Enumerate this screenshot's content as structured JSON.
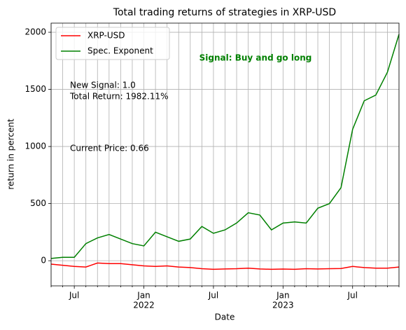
{
  "chart_data": {
    "type": "line",
    "title": "Total trading returns of strategies in XRP-USD",
    "x_label": "Date",
    "y_label": "return in percent",
    "x": [
      "2021-05",
      "2021-06",
      "2021-07",
      "2021-08",
      "2021-09",
      "2021-10",
      "2021-11",
      "2021-12",
      "2022-01",
      "2022-02",
      "2022-03",
      "2022-04",
      "2022-05",
      "2022-06",
      "2022-07",
      "2022-08",
      "2022-09",
      "2022-10",
      "2022-11",
      "2022-12",
      "2023-01",
      "2023-02",
      "2023-03",
      "2023-04",
      "2023-05",
      "2023-06",
      "2023-07",
      "2023-08",
      "2023-09",
      "2023-10",
      "2023-11"
    ],
    "series": [
      {
        "name": "XRP-USD",
        "color": "#ff0000",
        "values": [
          -30,
          -40,
          -50,
          -55,
          -20,
          -25,
          -25,
          -35,
          -45,
          -50,
          -45,
          -55,
          -60,
          -70,
          -75,
          -72,
          -70,
          -65,
          -72,
          -75,
          -73,
          -75,
          -70,
          -72,
          -70,
          -68,
          -50,
          -60,
          -65,
          -65,
          -55
        ]
      },
      {
        "name": "Spec. Exponent",
        "color": "#008000",
        "values": [
          20,
          30,
          30,
          150,
          200,
          230,
          190,
          150,
          130,
          250,
          210,
          170,
          190,
          300,
          240,
          270,
          330,
          420,
          400,
          270,
          330,
          340,
          330,
          460,
          500,
          640,
          1150,
          1400,
          1450,
          1650,
          1982
        ]
      }
    ],
    "xlim": [
      "2021-05",
      "2023-11"
    ],
    "xticks": [
      {
        "value": "2021-07",
        "label": "Jul"
      },
      {
        "value": "2022-01",
        "label": "Jan",
        "year": "2022"
      },
      {
        "value": "2022-07",
        "label": "Jul"
      },
      {
        "value": "2023-01",
        "label": "Jan",
        "year": "2023"
      },
      {
        "value": "2023-07",
        "label": "Jul"
      }
    ],
    "xminorticks": [
      "2021-05",
      "2021-06",
      "2021-08",
      "2021-09",
      "2021-10",
      "2021-11",
      "2021-12",
      "2022-02",
      "2022-03",
      "2022-04",
      "2022-05",
      "2022-06",
      "2022-08",
      "2022-09",
      "2022-10",
      "2022-11",
      "2022-12",
      "2023-02",
      "2023-03",
      "2023-04",
      "2023-05",
      "2023-06",
      "2023-08",
      "2023-09",
      "2023-10",
      "2023-11"
    ],
    "ylim": [
      -220,
      2080
    ],
    "yticks": [
      0,
      500,
      1000,
      1500,
      2000
    ],
    "grid": true,
    "legend": "upper left",
    "annotations": [
      {
        "text": "Signal: Buy and go long",
        "color": "#008000"
      },
      {
        "text": "New Signal: 1.0"
      },
      {
        "text": "Total Return: 1982.11%"
      },
      {
        "text": "Current Price: 0.66"
      }
    ]
  }
}
